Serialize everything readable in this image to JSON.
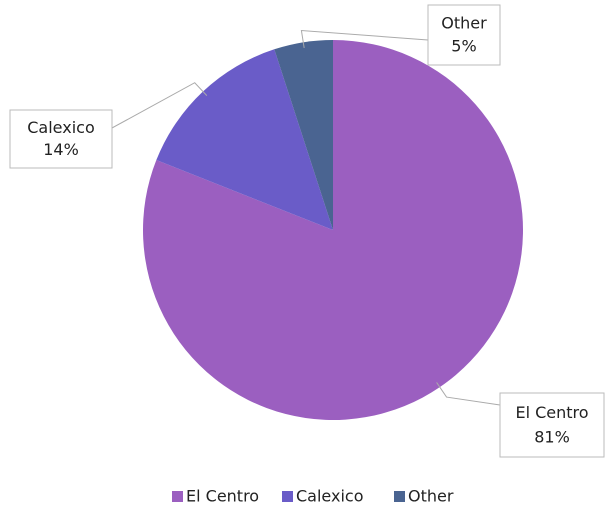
{
  "chart_data": {
    "type": "pie",
    "categories": [
      "El Centro",
      "Calexico",
      "Other"
    ],
    "values": [
      81,
      14,
      5
    ],
    "value_labels": [
      "81%",
      "14%",
      "5%"
    ],
    "colors": [
      "#9b5fc0",
      "#6a5cc8",
      "#4a6491"
    ],
    "legend": "bottom"
  }
}
